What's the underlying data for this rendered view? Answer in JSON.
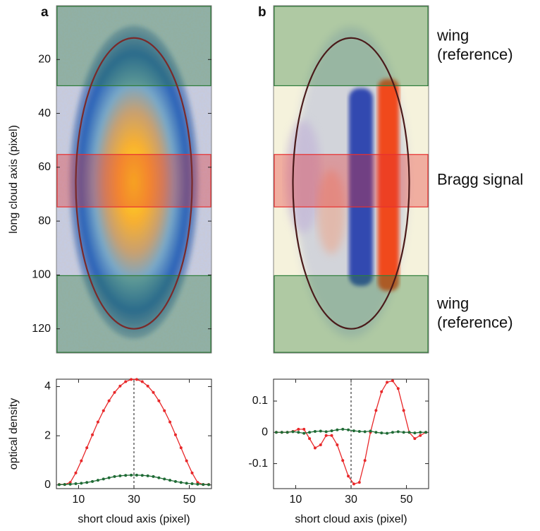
{
  "chart_data": [
    {
      "type": "image",
      "panel": "a",
      "ylabel": "long cloud axis (pixel)",
      "xlim": [
        2,
        58
      ],
      "ylim": [
        0,
        129
      ],
      "yticks": [
        20,
        40,
        60,
        80,
        100,
        120
      ],
      "ellipse": {
        "cx": 30,
        "cy": 66,
        "rx": 21,
        "ry": 54,
        "color": "#7a2a2a"
      },
      "bands": [
        {
          "from": 0,
          "to": 30,
          "color": "#2e7d3a"
        },
        {
          "from": 55,
          "to": 75,
          "color": "#e83030"
        },
        {
          "from": 100,
          "to": 129,
          "color": "#2e7d3a"
        }
      ]
    },
    {
      "type": "image",
      "panel": "b",
      "xlim": [
        2,
        58
      ],
      "ylim": [
        0,
        129
      ],
      "ellipse": {
        "cx": 30,
        "cy": 66,
        "rx": 21,
        "ry": 54,
        "color": "#4a1a1a"
      },
      "bands": [
        {
          "from": 0,
          "to": 30,
          "color": "#2e7d3a"
        },
        {
          "from": 55,
          "to": 75,
          "color": "#e83030"
        },
        {
          "from": 100,
          "to": 129,
          "color": "#2e7d3a"
        }
      ],
      "annotations": [
        {
          "lines": [
            "wing",
            "(reference)"
          ]
        },
        {
          "lines": [
            "Bragg signal"
          ]
        },
        {
          "lines": [
            "wing",
            "(reference)"
          ]
        }
      ]
    },
    {
      "type": "line",
      "xlabel": "short cloud axis (pixel)",
      "ylabel": "optical density",
      "xlim": [
        2,
        58
      ],
      "ylim": [
        -0.15,
        4.3
      ],
      "xticks": [
        10,
        30,
        50
      ],
      "yticks": [
        0,
        2,
        4
      ],
      "vline": 30,
      "x": [
        3,
        5,
        7,
        9,
        11,
        13,
        15,
        17,
        19,
        21,
        23,
        25,
        27,
        29,
        31,
        33,
        35,
        37,
        39,
        41,
        43,
        45,
        47,
        49,
        51,
        53,
        55,
        57
      ],
      "series": [
        {
          "color": "#e8282a",
          "values": [
            0.02,
            0.02,
            0.1,
            0.49,
            0.98,
            1.51,
            2.04,
            2.56,
            3.02,
            3.42,
            3.76,
            4.02,
            4.2,
            4.29,
            4.29,
            4.2,
            4.02,
            3.76,
            3.42,
            3.02,
            2.56,
            2.04,
            1.51,
            0.98,
            0.49,
            0.1,
            0.02,
            0.02
          ]
        },
        {
          "color": "#1f6b35",
          "values": [
            0.01,
            0.02,
            0.03,
            0.05,
            0.07,
            0.1,
            0.14,
            0.19,
            0.24,
            0.29,
            0.34,
            0.37,
            0.39,
            0.4,
            0.4,
            0.39,
            0.37,
            0.34,
            0.29,
            0.24,
            0.19,
            0.14,
            0.1,
            0.07,
            0.05,
            0.03,
            0.02,
            0.01
          ]
        }
      ]
    },
    {
      "type": "line",
      "xlabel": "short cloud axis (pixel)",
      "xlim": [
        2,
        58
      ],
      "ylim": [
        -0.18,
        0.17
      ],
      "xticks": [
        10,
        30,
        50
      ],
      "yticks": [
        -0.1,
        0,
        0.1
      ],
      "vline": 30,
      "x": [
        3,
        5,
        7,
        9,
        11,
        13,
        15,
        17,
        19,
        21,
        23,
        25,
        27,
        29,
        31,
        33,
        35,
        37,
        39,
        41,
        43,
        45,
        47,
        49,
        51,
        53,
        55,
        57
      ],
      "series": [
        {
          "color": "#e8282a",
          "values": [
            0,
            0,
            0,
            0.003,
            0.01,
            0.01,
            -0.02,
            -0.05,
            -0.04,
            -0.01,
            -0.01,
            -0.04,
            -0.09,
            -0.14,
            -0.165,
            -0.16,
            -0.09,
            0,
            0.07,
            0.13,
            0.16,
            0.165,
            0.14,
            0.07,
            0,
            -0.02,
            -0.01,
            0
          ]
        },
        {
          "color": "#1f6b35",
          "values": [
            0,
            0,
            0,
            0.002,
            0,
            -0.003,
            0,
            0.003,
            0.004,
            0.002,
            0.005,
            0.008,
            0.01,
            0.008,
            0.005,
            0.003,
            0.002,
            0.004,
            0,
            -0.002,
            -0.003,
            0,
            0.002,
            0,
            0,
            -0.002,
            0,
            0
          ]
        }
      ]
    }
  ]
}
